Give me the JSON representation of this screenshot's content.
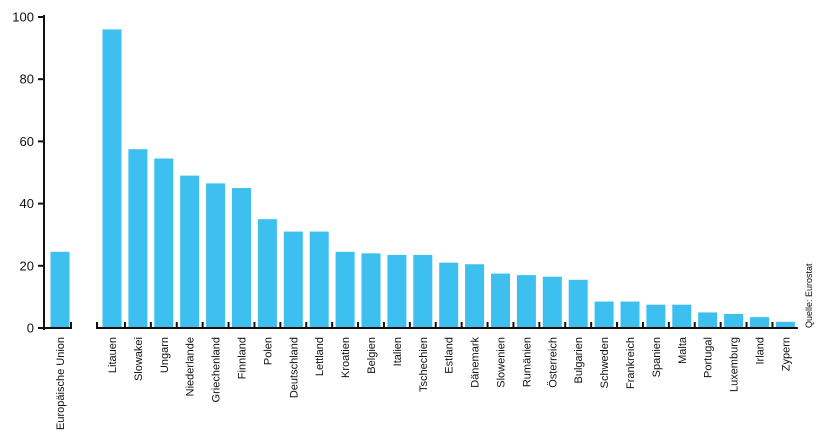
{
  "chart_data": {
    "type": "bar",
    "categories": [
      "Europäische Union",
      "Litauen",
      "Slowakei",
      "Ungarn",
      "Niederlande",
      "Griechenland",
      "Finnland",
      "Polen",
      "Deutschland",
      "Lettland",
      "Kroatien",
      "Belgien",
      "Italien",
      "Tschechien",
      "Estland",
      "Dänemark",
      "Slowenien",
      "Rumänien",
      "Österreich",
      "Bulgarien",
      "Schweden",
      "Frankreich",
      "Spanien",
      "Malta",
      "Portugal",
      "Luxemburg",
      "Irland",
      "Zypern"
    ],
    "values": [
      24.5,
      96,
      57.5,
      54.5,
      49,
      46.5,
      45,
      35,
      31,
      31,
      24.5,
      24,
      23.5,
      23.5,
      21,
      20.5,
      17.5,
      17,
      16.5,
      15.5,
      8.5,
      8.5,
      7.5,
      7.5,
      5,
      4.5,
      3.5,
      2
    ],
    "yticks": [
      0,
      20,
      40,
      60,
      80,
      100
    ],
    "ylim": [
      0,
      100
    ],
    "bar_color": "#3dbfef",
    "axis_color": "#111111",
    "source": "Quelle: Eurostat"
  }
}
